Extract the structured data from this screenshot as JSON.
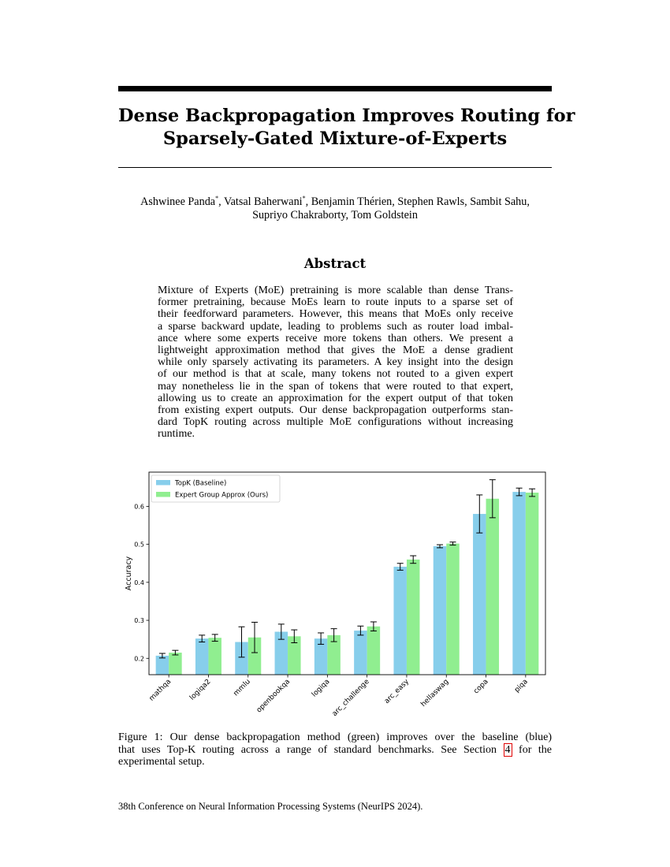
{
  "paper": {
    "title_line1": "Dense Backpropagation Improves Routing for",
    "title_line2": "Sparsely-Gated Mixture-of-Experts",
    "authors": [
      {
        "name": "Ashwinee Panda",
        "sup": "*"
      },
      {
        "name": "Vatsal Baherwani",
        "sup": "*"
      },
      {
        "name": "Benjamin Thérien",
        "sup": ""
      },
      {
        "name": "Stephen Rawls",
        "sup": ""
      },
      {
        "name": "Sambit Sahu",
        "sup": ""
      },
      {
        "name": "Supriyo Chakraborty",
        "sup": ""
      },
      {
        "name": "Tom Goldstein",
        "sup": ""
      }
    ],
    "abstract_heading": "Abstract",
    "abstract_lines": [
      "Mixture of Experts (MoE) pretraining is more scalable than dense Trans-",
      "former pretraining, because MoEs learn to route inputs to a sparse set of",
      "their feedforward parameters. However, this means that MoEs only receive",
      "a sparse backward update, leading to problems such as router load imbal-",
      "ance where some experts receive more tokens than others. We present a",
      "lightweight approximation method that gives the MoE a dense gradient",
      "while only sparsely activating its parameters. A key insight into the design",
      "of our method is that at scale, many tokens not routed to a given expert",
      "may nonetheless lie in the span of tokens that were routed to that expert,",
      "allowing us to create an approximation for the expert output of that token",
      "from existing expert outputs. Our dense backpropagation outperforms stan-",
      "dard TopK routing across multiple MoE configurations without increasing",
      "runtime."
    ],
    "caption": {
      "line1": "Figure 1: Our dense backpropagation method (green) improves over the baseline (blue)",
      "line2_pre": "that uses Top-K routing across a range of standard benchmarks.  See Section ",
      "line2_ref": "4",
      "line2_post": " for the",
      "line3": "experimental setup."
    },
    "footer": "38th Conference on Neural Information Processing Systems (NeurIPS 2024)."
  },
  "colors": {
    "baseline": "#87ceeb",
    "ours": "#90ee90",
    "ref_box": "#e00000"
  },
  "chart_data": {
    "type": "bar",
    "xlabel": "",
    "ylabel": "Accuracy",
    "ylim": [
      0.157,
      0.69
    ],
    "yticks": [
      0.2,
      0.3,
      0.4,
      0.5,
      0.6
    ],
    "ytick_labels": [
      "0.2",
      "0.3",
      "0.4",
      "0.5",
      "0.6"
    ],
    "legend_position": "top-left",
    "categories": [
      "mathqa",
      "logiqa2",
      "mmlu",
      "openbookqa",
      "logiqa",
      "arc_challenge",
      "arc_easy",
      "hellaswag",
      "copa",
      "piqa"
    ],
    "series": [
      {
        "name": "TopK (Baseline)",
        "color": "#87ceeb",
        "values": [
          0.207,
          0.252,
          0.243,
          0.27,
          0.252,
          0.273,
          0.441,
          0.495,
          0.58,
          0.638
        ],
        "errors": [
          0.006,
          0.009,
          0.04,
          0.02,
          0.015,
          0.012,
          0.009,
          0.004,
          0.05,
          0.01
        ]
      },
      {
        "name": "Expert Group Approx (Ours)",
        "color": "#90ee90",
        "values": [
          0.215,
          0.254,
          0.255,
          0.258,
          0.261,
          0.284,
          0.46,
          0.502,
          0.62,
          0.636
        ],
        "errors": [
          0.006,
          0.009,
          0.04,
          0.017,
          0.017,
          0.012,
          0.01,
          0.004,
          0.05,
          0.01
        ]
      }
    ]
  }
}
